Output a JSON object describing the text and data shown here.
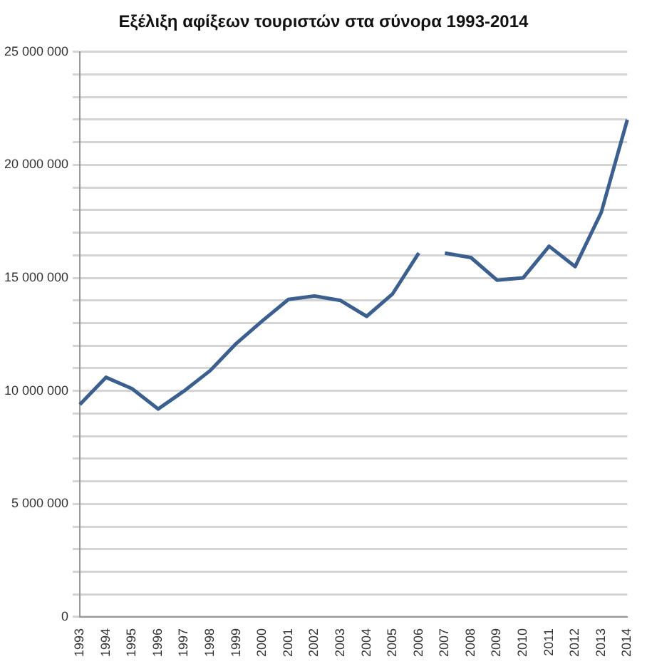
{
  "chart_data": {
    "type": "line",
    "title": "Εξέλιξη αφίξεων τουριστών στα σύνορα 1993-2014",
    "categories": [
      "1993",
      "1994",
      "1995",
      "1996",
      "1997",
      "1998",
      "1999",
      "2000",
      "2001",
      "2002",
      "2003",
      "2004",
      "2005",
      "2006",
      "2007",
      "2008",
      "2009",
      "2010",
      "2011",
      "2012",
      "2013",
      "2014"
    ],
    "series": [
      {
        "color": "#3b5f8e",
        "values": [
          9400000,
          10600000,
          10100000,
          9200000,
          10000000,
          10900000,
          12100000,
          13100000,
          14050000,
          14200000,
          14000000,
          13300000,
          14300000,
          16100000,
          null,
          null,
          null,
          null,
          null,
          null,
          null,
          null
        ]
      },
      {
        "color": "#3b5f8e",
        "values": [
          null,
          null,
          null,
          null,
          null,
          null,
          null,
          null,
          null,
          null,
          null,
          null,
          null,
          null,
          16100000,
          15900000,
          14900000,
          15000000,
          16400000,
          15500000,
          17900000,
          22000000
        ]
      }
    ],
    "ylim": [
      0,
      25000000
    ],
    "yticks": [
      {
        "value": 0,
        "label": "0"
      },
      {
        "value": 1000000,
        "label": null
      },
      {
        "value": 2000000,
        "label": null
      },
      {
        "value": 3000000,
        "label": null
      },
      {
        "value": 4000000,
        "label": null
      },
      {
        "value": 5000000,
        "label": "5 000 000"
      },
      {
        "value": 6000000,
        "label": null
      },
      {
        "value": 7000000,
        "label": null
      },
      {
        "value": 8000000,
        "label": null
      },
      {
        "value": 9000000,
        "label": null
      },
      {
        "value": 10000000,
        "label": "10 000 000"
      },
      {
        "value": 11000000,
        "label": null
      },
      {
        "value": 12000000,
        "label": null
      },
      {
        "value": 13000000,
        "label": null
      },
      {
        "value": 14000000,
        "label": null
      },
      {
        "value": 15000000,
        "label": "15 000 000"
      },
      {
        "value": 16000000,
        "label": null
      },
      {
        "value": 17000000,
        "label": null
      },
      {
        "value": 18000000,
        "label": null
      },
      {
        "value": 19000000,
        "label": null
      },
      {
        "value": 20000000,
        "label": "20 000 000"
      },
      {
        "value": 21000000,
        "label": null
      },
      {
        "value": 22000000,
        "label": null
      },
      {
        "value": 23000000,
        "label": null
      },
      {
        "value": 24000000,
        "label": null
      },
      {
        "value": 25000000,
        "label": "25 000 000"
      }
    ],
    "grid": "y",
    "marker": "none",
    "line_style": "solid",
    "legend": false
  }
}
